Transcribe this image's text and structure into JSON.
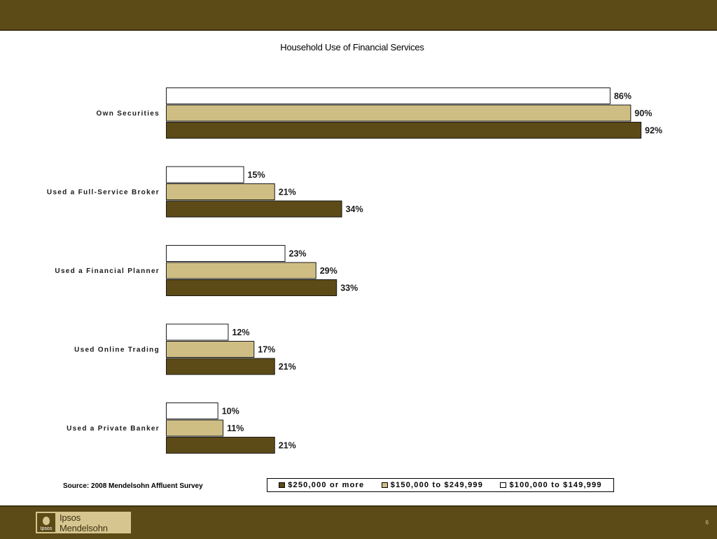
{
  "colors": {
    "band": "#5c4a17",
    "series_dark": "#5c4a17",
    "series_tan": "#cfbe84",
    "series_white": "#ffffff"
  },
  "chart_data": {
    "type": "bar",
    "orientation": "horizontal",
    "title": "Household Use of Financial Services",
    "categories": [
      "Own Securities",
      "Used a Full-Service Broker",
      "Used a Financial Planner",
      "Used Online Trading",
      "Used a Private Banker"
    ],
    "series": [
      {
        "name": "$100,000 to $149,999",
        "color": "#ffffff",
        "values": [
          86,
          15,
          23,
          12,
          10
        ]
      },
      {
        "name": "$150,000 to $249,999",
        "color": "#cfbe84",
        "values": [
          90,
          21,
          29,
          17,
          11
        ]
      },
      {
        "name": "$250,000 or more",
        "color": "#5c4a17",
        "values": [
          92,
          34,
          33,
          21,
          21
        ]
      }
    ],
    "legend_order": [
      "$250,000 or more",
      "$150,000 to $249,999",
      "$100,000 to $149,999"
    ],
    "value_suffix": "%",
    "xlim": [
      0,
      100
    ],
    "grid": false,
    "legend_position": "bottom"
  },
  "footer": {
    "source": "Source: 2008 Mendelsohn Affluent Survey",
    "logo_text": "Ipsos Mendelsohn",
    "logo_mark_text": "Ipsos",
    "page_number": "6"
  }
}
